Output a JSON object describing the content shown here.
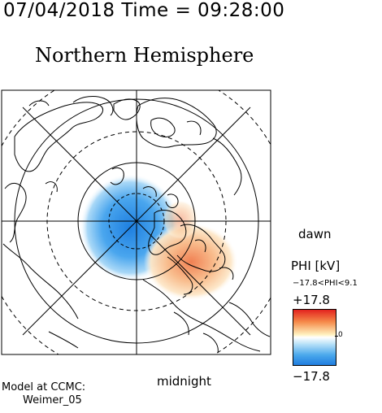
{
  "header": {
    "timestamp": "07/04/2018 Time = 09:28:00",
    "title": "Northern Hemisphere"
  },
  "map": {
    "projection": "polar stereographic, north pole centered",
    "labels": {
      "dawn": "dawn",
      "midnight": "midnight"
    },
    "colors": {
      "negative": "#2a8ae8",
      "positive": "#f08a5a",
      "coastline": "#000000"
    }
  },
  "colorbar": {
    "quantity": "PHI [kV]",
    "range_text": "−17.8<PHI<9.1",
    "max_label": "+17.8",
    "zero_label": "0",
    "min_label": "−17.8"
  },
  "footer": {
    "model_line1": "Model at CCMC:",
    "model_line2": "Weimer_05"
  }
}
